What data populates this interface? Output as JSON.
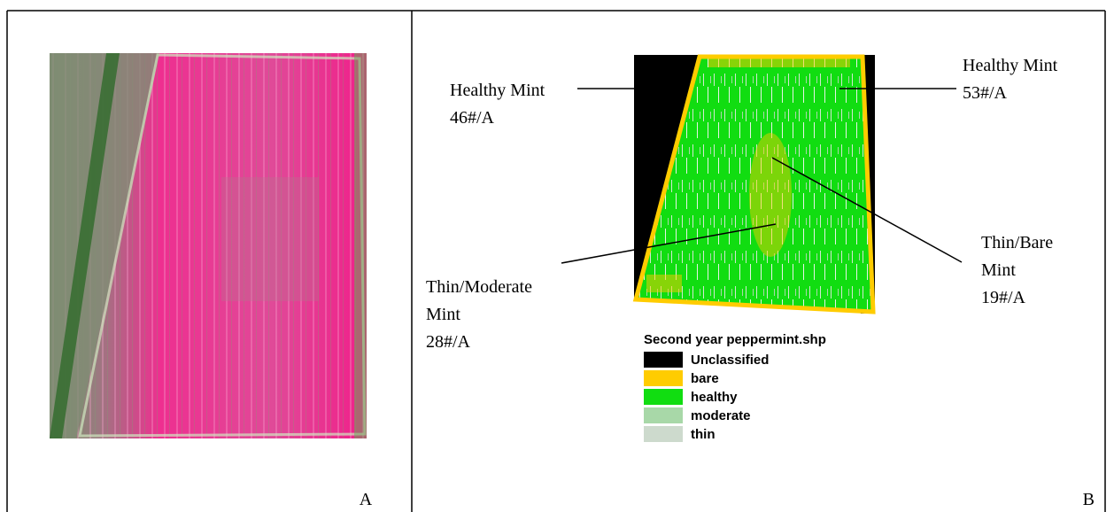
{
  "panel_a": {
    "label": "A"
  },
  "panel_b": {
    "label": "B",
    "annotations": [
      {
        "lines": [
          "Healthy Mint",
          "46#/A"
        ]
      },
      {
        "lines": [
          "Healthy Mint",
          "53#/A"
        ]
      },
      {
        "lines": [
          "Thin/Bare",
          "Mint",
          "19#/A"
        ]
      },
      {
        "lines": [
          "Thin/Moderate",
          "Mint",
          "28#/A"
        ]
      }
    ],
    "legend": {
      "title": "Second year peppermint.shp",
      "items": [
        {
          "label": "Unclassified",
          "color": "#000000"
        },
        {
          "label": "bare",
          "color": "#ffcc00"
        },
        {
          "label": "healthy",
          "color": "#11dd11"
        },
        {
          "label": "moderate",
          "color": "#a8d8a8"
        },
        {
          "label": "thin",
          "color": "#cddacd"
        }
      ]
    }
  }
}
